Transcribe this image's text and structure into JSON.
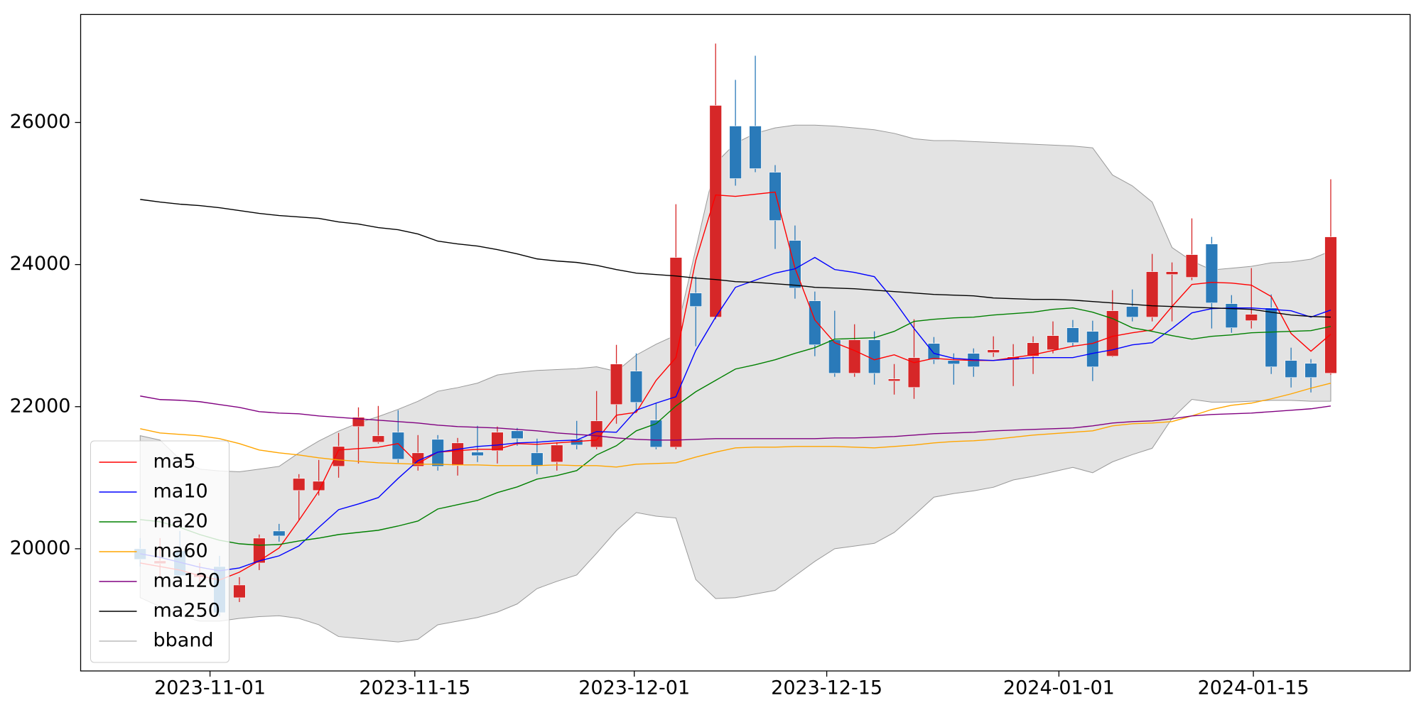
{
  "chart_data": {
    "type": "candlestick",
    "categories": [
      null,
      null,
      null,
      null,
      null,
      null,
      null,
      null,
      null,
      null,
      null,
      null,
      null,
      null,
      null,
      null,
      null,
      null,
      null,
      null,
      null,
      null,
      null,
      null,
      null,
      null,
      null,
      null,
      null,
      null,
      null,
      null,
      null,
      null,
      null,
      null,
      null,
      null,
      null,
      null,
      null,
      null,
      null,
      null,
      null,
      null,
      null,
      null,
      null,
      null,
      null,
      null,
      null,
      null,
      null,
      null,
      null,
      null,
      null,
      null,
      null
    ],
    "open": [
      20000,
      19790,
      19970,
      19600,
      19750,
      19310,
      19800,
      20250,
      20820,
      20820,
      21160,
      21720,
      21500,
      21640,
      21160,
      21540,
      21170,
      21360,
      21380,
      21660,
      21350,
      21220,
      21540,
      21430,
      22030,
      22500,
      21810,
      21430,
      23600,
      23260,
      25950,
      25950,
      25300,
      24340,
      23490,
      22940,
      22470,
      22940,
      22360,
      22270,
      22890,
      22650,
      22750,
      22760,
      22660,
      22710,
      22800,
      23110,
      23060,
      22710,
      23410,
      23260,
      23860,
      23820,
      24290,
      23450,
      23210,
      23390,
      22650,
      22610,
      22470
    ],
    "high": [
      20150,
      20150,
      20250,
      19800,
      19900,
      19600,
      20200,
      20350,
      21050,
      21250,
      21630,
      21990,
      22010,
      21950,
      21600,
      21600,
      21560,
      21730,
      21720,
      21700,
      21550,
      21500,
      21800,
      22220,
      22870,
      22750,
      22050,
      24850,
      23830,
      27110,
      26600,
      26940,
      25400,
      24550,
      23620,
      23350,
      23160,
      23060,
      22600,
      23230,
      22980,
      22750,
      22820,
      22990,
      22880,
      22990,
      23200,
      23220,
      23210,
      23640,
      23650,
      24150,
      24030,
      24650,
      24390,
      23570,
      23950,
      23580,
      22830,
      22670,
      25200
    ],
    "low": [
      19750,
      19600,
      19580,
      19500,
      19050,
      19250,
      19700,
      20100,
      20400,
      20750,
      21000,
      21200,
      21480,
      21210,
      21100,
      21100,
      21030,
      21220,
      21200,
      21450,
      21050,
      21100,
      21400,
      21400,
      21760,
      21920,
      21400,
      21400,
      22850,
      23230,
      25110,
      25300,
      24220,
      23520,
      22710,
      22420,
      22420,
      22310,
      22170,
      22110,
      22600,
      22310,
      22420,
      22700,
      22290,
      22460,
      22750,
      22850,
      22360,
      22700,
      23200,
      23200,
      23200,
      23780,
      23100,
      23040,
      23100,
      22460,
      22270,
      22200,
      22450
    ],
    "close": [
      19850,
      19830,
      19620,
      19650,
      19100,
      19490,
      20150,
      20180,
      20990,
      20950,
      21440,
      21850,
      21590,
      21260,
      21350,
      21160,
      21490,
      21310,
      21640,
      21550,
      21170,
      21460,
      21460,
      21800,
      22600,
      22060,
      21430,
      24100,
      23410,
      26240,
      25210,
      25350,
      24620,
      23670,
      22870,
      22470,
      22940,
      22470,
      22390,
      22690,
      22660,
      22600,
      22560,
      22800,
      22700,
      22900,
      23000,
      22900,
      22560,
      23350,
      23260,
      23900,
      23900,
      24140,
      23460,
      23110,
      23300,
      22560,
      22410,
      22410,
      24390
    ],
    "up_color": "#d62728",
    "down_color": "#2a7ab9",
    "series": [
      {
        "name": "ma5",
        "color": "#ff0000",
        "values": [
          19800,
          19750,
          19700,
          19620,
          19560,
          19670,
          19830,
          20010,
          20400,
          20810,
          21390,
          21410,
          21430,
          21480,
          21200,
          21360,
          21380,
          21400,
          21400,
          21480,
          21470,
          21490,
          21510,
          21530,
          21880,
          21920,
          22370,
          22690,
          24060,
          24980,
          24960,
          24990,
          25020,
          23950,
          23220,
          22900,
          22790,
          22660,
          22730,
          22620,
          22680,
          22660,
          22650,
          22650,
          22690,
          22730,
          22790,
          22850,
          22890,
          22990,
          23040,
          23080,
          23410,
          23720,
          23750,
          23740,
          23710,
          23550,
          23030,
          22780,
          23020
        ]
      },
      {
        "name": "ma10",
        "color": "#0000ff",
        "values": [
          19930,
          19880,
          19810,
          19740,
          19690,
          19730,
          19830,
          19900,
          20040,
          20300,
          20550,
          20630,
          20720,
          20990,
          21240,
          21360,
          21400,
          21440,
          21460,
          21490,
          21500,
          21520,
          21530,
          21650,
          21640,
          21950,
          22050,
          22140,
          22790,
          23260,
          23680,
          23780,
          23880,
          23940,
          24100,
          23930,
          23890,
          23830,
          23490,
          23100,
          22750,
          22680,
          22660,
          22650,
          22670,
          22690,
          22690,
          22690,
          22750,
          22800,
          22870,
          22900,
          23100,
          23320,
          23380,
          23390,
          23390,
          23370,
          23350,
          23260,
          23360
        ]
      },
      {
        "name": "ma20",
        "color": "#008000",
        "values": [
          20410,
          20380,
          20300,
          20200,
          20120,
          20070,
          20050,
          20060,
          20110,
          20150,
          20200,
          20230,
          20260,
          20320,
          20390,
          20560,
          20620,
          20680,
          20790,
          20870,
          20980,
          21030,
          21100,
          21320,
          21450,
          21660,
          21760,
          22010,
          22210,
          22370,
          22530,
          22590,
          22660,
          22750,
          22830,
          22950,
          22960,
          22970,
          23060,
          23200,
          23230,
          23250,
          23260,
          23290,
          23310,
          23330,
          23370,
          23390,
          23330,
          23240,
          23110,
          23060,
          23000,
          22950,
          22990,
          23010,
          23040,
          23050,
          23060,
          23070,
          23130
        ]
      },
      {
        "name": "ma60",
        "color": "#ffa500",
        "values": [
          21690,
          21630,
          21610,
          21590,
          21550,
          21480,
          21390,
          21350,
          21320,
          21280,
          21250,
          21230,
          21210,
          21200,
          21190,
          21190,
          21180,
          21180,
          21170,
          21170,
          21170,
          21180,
          21170,
          21170,
          21150,
          21190,
          21200,
          21210,
          21290,
          21360,
          21420,
          21430,
          21430,
          21440,
          21440,
          21440,
          21430,
          21420,
          21440,
          21460,
          21490,
          21510,
          21520,
          21540,
          21570,
          21600,
          21620,
          21640,
          21660,
          21730,
          21760,
          21770,
          21790,
          21870,
          21960,
          22020,
          22050,
          22110,
          22180,
          22260,
          22330
        ]
      },
      {
        "name": "ma120",
        "color": "#800080",
        "values": [
          22150,
          22100,
          22090,
          22070,
          22030,
          21990,
          21930,
          21910,
          21900,
          21870,
          21850,
          21830,
          21810,
          21790,
          21770,
          21740,
          21720,
          21710,
          21700,
          21680,
          21660,
          21630,
          21610,
          21590,
          21560,
          21540,
          21530,
          21530,
          21540,
          21550,
          21550,
          21550,
          21550,
          21550,
          21550,
          21560,
          21560,
          21570,
          21580,
          21600,
          21620,
          21630,
          21640,
          21660,
          21670,
          21680,
          21690,
          21700,
          21730,
          21770,
          21790,
          21800,
          21830,
          21870,
          21890,
          21900,
          21910,
          21930,
          21950,
          21970,
          22010
        ]
      },
      {
        "name": "ma250",
        "color": "#000000",
        "values": [
          24917,
          24880,
          24850,
          24830,
          24800,
          24760,
          24720,
          24690,
          24670,
          24650,
          24600,
          24570,
          24520,
          24490,
          24430,
          24330,
          24290,
          24260,
          24210,
          24150,
          24080,
          24050,
          24030,
          23990,
          23930,
          23880,
          23860,
          23840,
          23810,
          23790,
          23760,
          23750,
          23730,
          23710,
          23680,
          23670,
          23660,
          23640,
          23620,
          23600,
          23580,
          23570,
          23560,
          23530,
          23520,
          23510,
          23510,
          23500,
          23480,
          23460,
          23440,
          23420,
          23410,
          23400,
          23390,
          23380,
          23370,
          23330,
          23290,
          23270,
          23260
        ]
      }
    ],
    "band": {
      "name": "bband",
      "color": "#999999",
      "fill": "#e3e3e3",
      "upper": [
        21592,
        21529,
        21261,
        21121,
        21096,
        21083,
        21121,
        21159,
        21350,
        21516,
        21656,
        21771,
        21860,
        21962,
        22076,
        22217,
        22268,
        22331,
        22446,
        22484,
        22510,
        22522,
        22535,
        22561,
        22497,
        22726,
        22879,
        23006,
        24217,
        25427,
        25707,
        25847,
        25924,
        25962,
        25962,
        25949,
        25924,
        25898,
        25847,
        25771,
        25745,
        25745,
        25732,
        25720,
        25707,
        25694,
        25682,
        25669,
        25643,
        25261,
        25108,
        24880,
        24240,
        24050,
        23924,
        23949,
        23975,
        24025,
        24038,
        24076,
        24191
      ],
      "lower": [
        19312,
        19185,
        19057,
        18981,
        18981,
        19019,
        19045,
        19057,
        19019,
        18930,
        18764,
        18739,
        18713,
        18688,
        18726,
        18930,
        18981,
        19032,
        19108,
        19223,
        19439,
        19541,
        19631,
        19936,
        20255,
        20510,
        20459,
        20433,
        19567,
        19299,
        19312,
        19363,
        19414,
        19618,
        19822,
        20000,
        20038,
        20076,
        20229,
        20471,
        20726,
        20777,
        20815,
        20866,
        20968,
        21019,
        21083,
        21146,
        21070,
        21223,
        21325,
        21414,
        21834,
        22102,
        22064,
        22064,
        22076,
        22089,
        22089,
        22076,
        22076
      ]
    },
    "xlim": [
      -3,
      64
    ],
    "xticks": [
      {
        "value": 3.52,
        "label": "2023-11-01"
      },
      {
        "value": 13.84,
        "label": "2023-11-15"
      },
      {
        "value": 24.9,
        "label": "2023-12-01"
      },
      {
        "value": 34.6,
        "label": "2023-12-15"
      },
      {
        "value": 46.3,
        "label": "2024-01-01"
      },
      {
        "value": 56.1,
        "label": "2024-01-15"
      }
    ],
    "ylim": [
      18280,
      27520
    ],
    "yticks": [
      20000,
      22000,
      24000,
      26000
    ],
    "grid": false,
    "legend": "lower left"
  }
}
